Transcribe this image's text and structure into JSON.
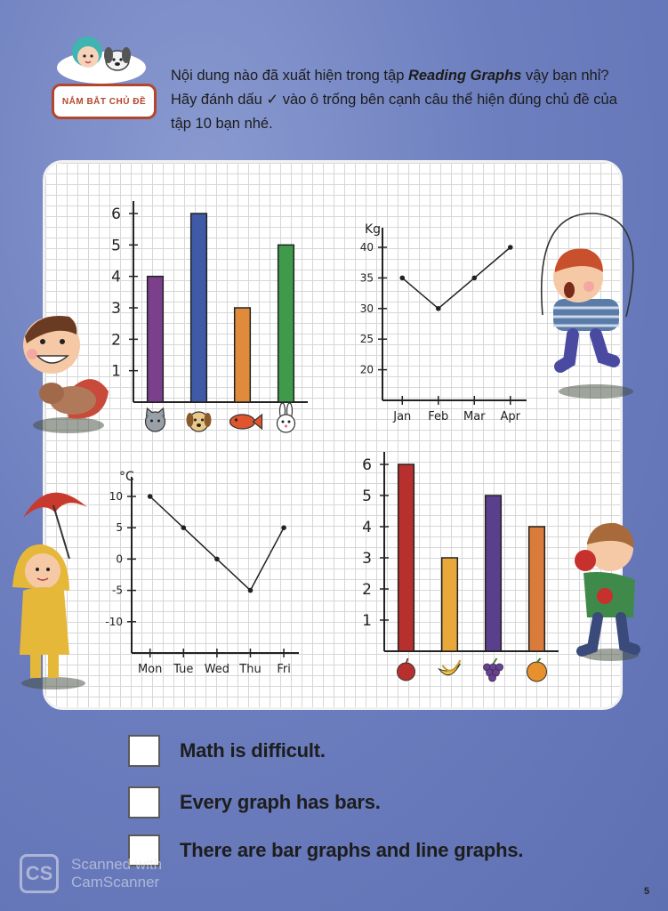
{
  "header": {
    "badge_label": "NẮM BẮT CHỦ ĐỀ",
    "intro_before": "Nội dung nào đã xuất hiện trong tập ",
    "intro_bold": "Reading Graphs",
    "intro_after": " vậy bạn nhỉ? Hãy đánh dấu ✓ vào ô trống bên cạnh câu thể hiện đúng chủ đề của tập 10 bạn nhé."
  },
  "chart_data": [
    {
      "type": "bar",
      "categories": [
        "cat",
        "dog",
        "fish",
        "rabbit"
      ],
      "category_icons": [
        "cat-icon",
        "dog-icon",
        "fish-icon",
        "rabbit-icon"
      ],
      "values": [
        4,
        6,
        3,
        5
      ],
      "colors": [
        "#7b3f8c",
        "#3f5aa6",
        "#e08a3c",
        "#3f9a4c"
      ],
      "yticks": [
        "1",
        "2",
        "3",
        "4",
        "5",
        "6"
      ],
      "ylim": [
        0,
        6
      ]
    },
    {
      "type": "line",
      "unit": "Kg",
      "categories": [
        "Jan",
        "Feb",
        "Mar",
        "Apr"
      ],
      "values": [
        35,
        30,
        35,
        40
      ],
      "yticks": [
        "20",
        "25",
        "30",
        "35",
        "40"
      ],
      "ylim": [
        15,
        40
      ]
    },
    {
      "type": "line",
      "unit": "°C",
      "categories": [
        "Mon",
        "Tue",
        "Wed",
        "Thu",
        "Fri"
      ],
      "values": [
        10,
        5,
        0,
        -5,
        5
      ],
      "yticks": [
        "-10",
        "-5",
        "0",
        "5",
        "10"
      ],
      "ylim": [
        -15,
        10
      ]
    },
    {
      "type": "bar",
      "categories": [
        "apple",
        "banana",
        "grapes",
        "orange"
      ],
      "category_icons": [
        "apple-icon",
        "banana-icon",
        "grapes-icon",
        "orange-icon"
      ],
      "values": [
        6,
        3,
        5,
        4
      ],
      "colors": [
        "#b8302e",
        "#e8a93a",
        "#5a3f8c",
        "#d97b3a"
      ],
      "yticks": [
        "1",
        "2",
        "3",
        "4",
        "5",
        "6"
      ],
      "ylim": [
        0,
        6
      ]
    }
  ],
  "options": [
    {
      "text": "Math is difficult."
    },
    {
      "text": "Every graph has bars."
    },
    {
      "text": "There are bar graphs and line graphs."
    }
  ],
  "watermark": {
    "logo": "CS",
    "line1": "Scanned with",
    "line2": "CamScanner"
  },
  "page_number": "5"
}
